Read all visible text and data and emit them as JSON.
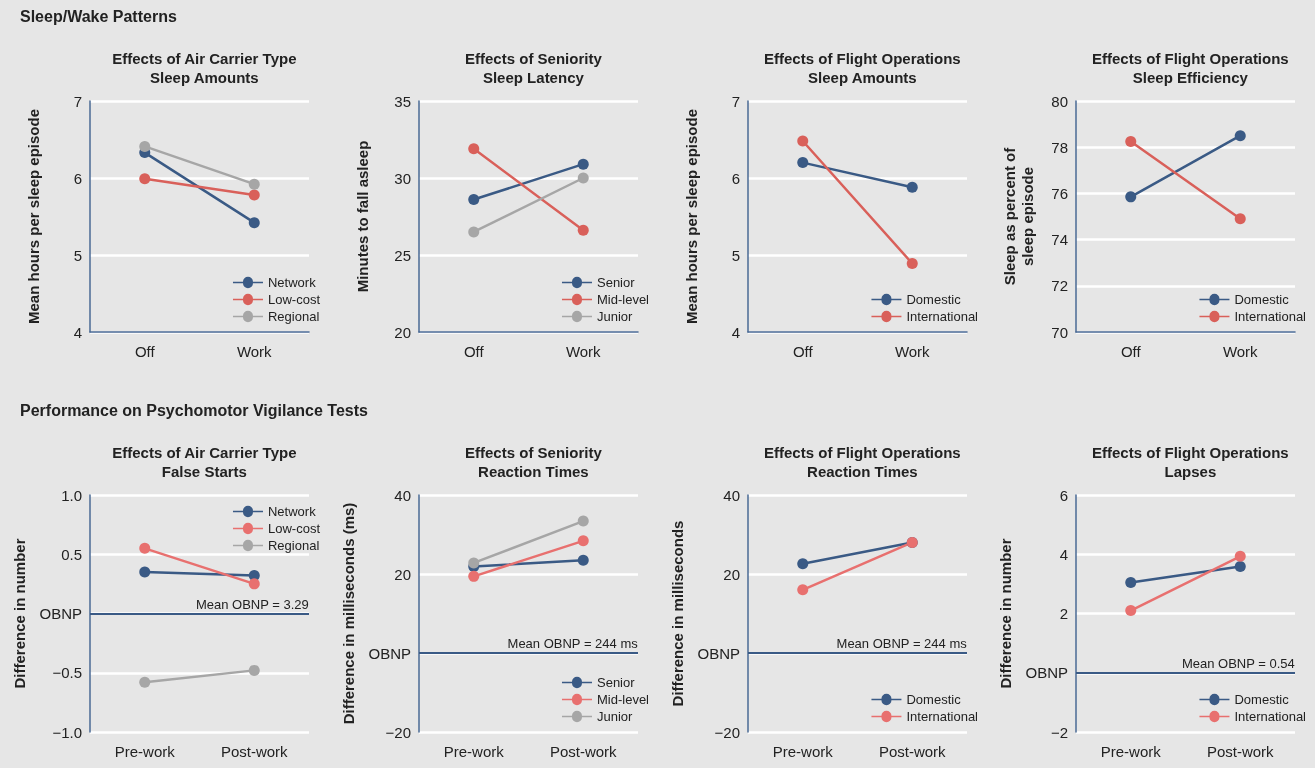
{
  "chart_data": [
    {
      "type": "line",
      "title": "Effects of Air Carrier Type\nSleep Amounts",
      "ylabel": "Mean hours per sleep episode",
      "subtitle": "Sleep/Wake Patterns",
      "categories": [
        "Off",
        "Work"
      ],
      "ylim": [
        4,
        7
      ],
      "yticks": [
        4,
        5,
        6,
        7
      ],
      "grid": "y",
      "legend": "bottom right",
      "marker": "circle",
      "line_style": "solid",
      "series": [
        {
          "name": "Network",
          "color": "#3a5a85",
          "values": [
            6.33,
            5.42
          ]
        },
        {
          "name": "Low-cost",
          "color": "#d9605a",
          "values": [
            5.99,
            5.78
          ]
        },
        {
          "name": "Regional",
          "color": "#a6a6a6",
          "values": [
            6.41,
            5.92
          ]
        }
      ]
    },
    {
      "type": "line",
      "title": "Effects of Seniority\nSleep Latency",
      "ylabel": "Minutes to fall asleep",
      "categories": [
        "Off",
        "Work"
      ],
      "ylim": [
        20,
        35
      ],
      "yticks": [
        20,
        25,
        30,
        35
      ],
      "grid": "y",
      "legend": "bottom right",
      "marker": "circle",
      "line_style": "solid",
      "series": [
        {
          "name": "Senior",
          "color": "#3a5a85",
          "values": [
            28.6,
            30.9
          ]
        },
        {
          "name": "Mid-level",
          "color": "#d9605a",
          "values": [
            31.9,
            26.6
          ]
        },
        {
          "name": "Junior",
          "color": "#a6a6a6",
          "values": [
            26.5,
            30.0
          ]
        }
      ]
    },
    {
      "type": "line",
      "title": "Effects of Flight Operations\nSleep Amounts",
      "ylabel": "Mean hours per sleep episode",
      "categories": [
        "Off",
        "Work"
      ],
      "ylim": [
        4,
        7
      ],
      "yticks": [
        4,
        5,
        6,
        7
      ],
      "grid": "y",
      "legend": "bottom right",
      "marker": "circle",
      "line_style": "solid",
      "series": [
        {
          "name": "Domestic",
          "color": "#3a5a85",
          "values": [
            6.2,
            5.88
          ]
        },
        {
          "name": "International",
          "color": "#d9605a",
          "values": [
            6.48,
            4.89
          ]
        }
      ]
    },
    {
      "type": "line",
      "title": "Effects of Flight Operations\nSleep Efficiency",
      "ylabel": "Sleep as percent of\nsleep episode",
      "categories": [
        "Off",
        "Work"
      ],
      "ylim": [
        70,
        80
      ],
      "yticks": [
        70,
        72,
        74,
        76,
        78,
        80
      ],
      "grid": "y",
      "legend": "bottom right",
      "marker": "circle",
      "line_style": "solid",
      "series": [
        {
          "name": "Domestic",
          "color": "#3a5a85",
          "values": [
            75.85,
            78.5
          ]
        },
        {
          "name": "International",
          "color": "#d9605a",
          "values": [
            78.25,
            74.9
          ]
        }
      ]
    },
    {
      "type": "line",
      "title": "Effects of Air Carrier Type\nFalse Starts",
      "ylabel": "Difference in number",
      "categories": [
        "Pre-work",
        "Post-work"
      ],
      "ylim": [
        -1,
        1
      ],
      "yticks": [
        {
          "value": -1,
          "label": "−1.0"
        },
        {
          "value": -0.5,
          "label": "−0.5"
        },
        {
          "value": 0,
          "label": "OBNP"
        },
        0.5,
        {
          "value": 1,
          "label": "1.0"
        }
      ],
      "grid": "y",
      "legend": "top right",
      "marker": "circle",
      "line_style": "solid",
      "subtitle": "Performance on Psychomotor Vigilance Tests",
      "annotations": [
        "Mean OBNP = 3.29"
      ],
      "ref_lines": [
        {
          "axis": "y",
          "value": 0,
          "color": "#3a5a85"
        }
      ],
      "series": [
        {
          "name": "Network",
          "color": "#3a5a85",
          "values": [
            0.35,
            0.32
          ]
        },
        {
          "name": "Low-cost",
          "color": "#e8706f",
          "values": [
            0.55,
            0.25
          ]
        },
        {
          "name": "Regional",
          "color": "#a6a6a6",
          "values": [
            -0.58,
            -0.48
          ]
        }
      ]
    },
    {
      "type": "line",
      "title": "Effects of Seniority\nReaction Times",
      "ylabel": "Difference in milliseconds (ms)",
      "categories": [
        "Pre-work",
        "Post-work"
      ],
      "ylim": [
        -20,
        40
      ],
      "yticks": [
        {
          "value": -20,
          "label": "−20"
        },
        {
          "value": 0,
          "label": "OBNP"
        },
        20,
        40
      ],
      "grid": "y",
      "legend": "bottom right",
      "marker": "circle",
      "line_style": "solid",
      "annotations": [
        "Mean OBNP = 244 ms"
      ],
      "ref_lines": [
        {
          "axis": "y",
          "value": 0,
          "color": "#3a5a85"
        }
      ],
      "series": [
        {
          "name": "Senior",
          "color": "#3a5a85",
          "values": [
            21.9,
            23.5
          ]
        },
        {
          "name": "Mid-level",
          "color": "#e8706f",
          "values": [
            19.4,
            28.4
          ]
        },
        {
          "name": "Junior",
          "color": "#a6a6a6",
          "values": [
            22.8,
            33.4
          ]
        }
      ]
    },
    {
      "type": "line",
      "title": "Effects of Flight Operations\nReaction Times",
      "ylabel": "Difference in milliseconds",
      "categories": [
        "Pre-work",
        "Post-work"
      ],
      "ylim": [
        -20,
        40
      ],
      "yticks": [
        {
          "value": -20,
          "label": "−20"
        },
        {
          "value": 0,
          "label": "OBNP"
        },
        20,
        40
      ],
      "grid": "y",
      "legend": "bottom right",
      "marker": "circle",
      "line_style": "solid",
      "annotations": [
        "Mean OBNP = 244 ms"
      ],
      "ref_lines": [
        {
          "axis": "y",
          "value": 0,
          "color": "#3a5a85"
        }
      ],
      "series": [
        {
          "name": "Domestic",
          "color": "#3a5a85",
          "values": [
            22.6,
            28.0
          ]
        },
        {
          "name": "International",
          "color": "#e8706f",
          "values": [
            16.0,
            28.0
          ]
        }
      ]
    },
    {
      "type": "line",
      "title": "Effects of Flight Operations\nLapses",
      "ylabel": "Difference in number",
      "categories": [
        "Pre-work",
        "Post-work"
      ],
      "ylim": [
        -2,
        6
      ],
      "yticks": [
        {
          "value": -2,
          "label": "−2"
        },
        {
          "value": 0,
          "label": "OBNP"
        },
        2,
        4,
        6
      ],
      "grid": "y",
      "legend": "bottom right",
      "marker": "circle",
      "line_style": "solid",
      "annotations": [
        "Mean OBNP = 0.54"
      ],
      "ref_lines": [
        {
          "axis": "y",
          "value": 0,
          "color": "#3a5a85"
        }
      ],
      "series": [
        {
          "name": "Domestic",
          "color": "#3a5a85",
          "values": [
            3.05,
            3.59
          ]
        },
        {
          "name": "International",
          "color": "#e8706f",
          "values": [
            2.1,
            3.93
          ]
        }
      ]
    }
  ]
}
